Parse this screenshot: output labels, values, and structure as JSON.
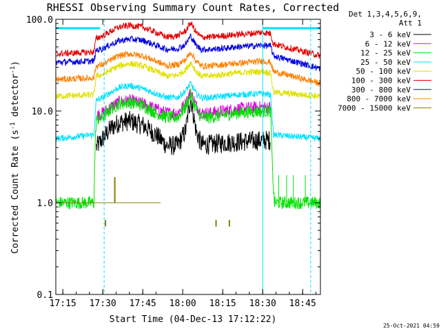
{
  "chart_data": {
    "type": "line",
    "title": "RHESSI Observing Summary Count Rates, Corrected",
    "xlabel": "Start Time (04-Dec-13 17:12:22)",
    "ylabel": "Corrected Count Rate (s⁻¹ detector⁻¹)",
    "ylabel_main": "Corrected Count Rate (s",
    "ylabel_sup1": "-1",
    "ylabel_mid": " detector",
    "ylabel_sup2": "-1",
    "ylabel_end": ")",
    "y_scale": "log",
    "ylim": [
      0.1,
      100.0
    ],
    "xlim": [
      "17:12:22",
      "18:51:40"
    ],
    "x_ticks": [
      {
        "value": "17:15",
        "label": "17:15"
      },
      {
        "value": "17:30",
        "label": "17:30"
      },
      {
        "value": "17:45",
        "label": "17:45"
      },
      {
        "value": "18:00",
        "label": "18:00"
      },
      {
        "value": "18:15",
        "label": "18:15"
      },
      {
        "value": "18:30",
        "label": "18:30"
      },
      {
        "value": "18:45",
        "label": "18:45"
      }
    ],
    "y_ticks": [
      {
        "value": 100.0,
        "label": "100.0"
      },
      {
        "value": 10.0,
        "label": "10.0"
      },
      {
        "value": 1.0,
        "label": "1.0"
      },
      {
        "value": 0.1,
        "label": "0.1"
      }
    ],
    "legend_header": [
      "Det 1,3,4,5,6,9,",
      "Att 1"
    ],
    "legend_position": "top-right",
    "grid": false,
    "series": [
      {
        "name": "3 - 6 keV",
        "color": "#000000",
        "points": [
          [
            "17:26:40",
            0
          ],
          [
            "17:27:30",
            4.0
          ],
          [
            "17:30",
            5.0
          ],
          [
            "17:33",
            6.5
          ],
          [
            "17:36",
            7.5
          ],
          [
            "17:40",
            7.8
          ],
          [
            "17:45",
            7.0
          ],
          [
            "17:50",
            5.5
          ],
          [
            "17:54",
            4.2
          ],
          [
            "17:58",
            4.2
          ],
          [
            "18:01",
            6.0
          ],
          [
            "18:03",
            14.0
          ],
          [
            "18:05",
            6.0
          ],
          [
            "18:07",
            4.3
          ],
          [
            "18:10",
            4.3
          ],
          [
            "18:15",
            4.5
          ],
          [
            "18:20",
            4.6
          ],
          [
            "18:25",
            4.7
          ],
          [
            "18:30",
            4.8
          ],
          [
            "18:33",
            4.8
          ],
          [
            "18:34",
            0
          ]
        ]
      },
      {
        "name": "6 - 12 keV",
        "color": "#e000e0",
        "points": [
          [
            "17:26:40",
            0
          ],
          [
            "17:27:30",
            9.0
          ],
          [
            "17:30",
            9.5
          ],
          [
            "17:33",
            11.0
          ],
          [
            "17:36",
            12.5
          ],
          [
            "17:40",
            13.0
          ],
          [
            "17:45",
            12.0
          ],
          [
            "17:50",
            10.5
          ],
          [
            "17:54",
            9.5
          ],
          [
            "17:58",
            9.5
          ],
          [
            "18:01",
            12.0
          ],
          [
            "18:03",
            16.0
          ],
          [
            "18:05",
            11.5
          ],
          [
            "18:07",
            9.5
          ],
          [
            "18:10",
            9.5
          ],
          [
            "18:15",
            10.0
          ],
          [
            "18:20",
            10.5
          ],
          [
            "18:25",
            10.8
          ],
          [
            "18:30",
            11.0
          ],
          [
            "18:33",
            11.0
          ],
          [
            "18:34",
            0
          ]
        ]
      },
      {
        "name": "12 - 25 keV",
        "color": "#00e000",
        "points": [
          [
            "17:12:22",
            1.0
          ],
          [
            "17:26:40",
            1.0
          ],
          [
            "17:27:00",
            3.0
          ],
          [
            "17:27:30",
            8.0
          ],
          [
            "17:30",
            8.5
          ],
          [
            "17:33",
            10.5
          ],
          [
            "17:36",
            12.0
          ],
          [
            "17:40",
            12.5
          ],
          [
            "17:45",
            11.5
          ],
          [
            "17:50",
            9.5
          ],
          [
            "17:54",
            8.5
          ],
          [
            "17:58",
            8.5
          ],
          [
            "18:01",
            11.0
          ],
          [
            "18:03",
            15.0
          ],
          [
            "18:05",
            10.5
          ],
          [
            "18:07",
            8.5
          ],
          [
            "18:10",
            8.5
          ],
          [
            "18:15",
            9.0
          ],
          [
            "18:20",
            9.5
          ],
          [
            "18:25",
            9.8
          ],
          [
            "18:30",
            10.0
          ],
          [
            "18:33",
            10.0
          ],
          [
            "18:33:30",
            3.0
          ],
          [
            "18:34:20",
            1.0
          ],
          [
            "18:51:40",
            1.0
          ]
        ]
      },
      {
        "name": "25 - 50 keV",
        "color": "#00e0ff",
        "points": [
          [
            "17:12:22",
            5.0
          ],
          [
            "17:26:40",
            5.5
          ],
          [
            "17:27:30",
            13.0
          ],
          [
            "17:30",
            14.0
          ],
          [
            "17:33",
            16.0
          ],
          [
            "17:36",
            18.0
          ],
          [
            "17:40",
            19.0
          ],
          [
            "17:45",
            17.5
          ],
          [
            "17:50",
            15.5
          ],
          [
            "17:54",
            14.0
          ],
          [
            "17:58",
            14.0
          ],
          [
            "18:01",
            16.5
          ],
          [
            "18:03",
            20.0
          ],
          [
            "18:05",
            15.5
          ],
          [
            "18:07",
            14.0
          ],
          [
            "18:10",
            14.0
          ],
          [
            "18:15",
            14.5
          ],
          [
            "18:20",
            15.0
          ],
          [
            "18:25",
            15.3
          ],
          [
            "18:30",
            15.5
          ],
          [
            "18:33",
            15.0
          ],
          [
            "18:34",
            5.5
          ],
          [
            "18:51:40",
            5.0
          ]
        ]
      },
      {
        "name": "50 - 100 keV",
        "color": "#e0e000",
        "points": [
          [
            "17:12:22",
            14.5
          ],
          [
            "17:26:40",
            15.0
          ],
          [
            "17:27:30",
            24.0
          ],
          [
            "17:30",
            25.0
          ],
          [
            "17:33",
            28.0
          ],
          [
            "17:36",
            31.0
          ],
          [
            "17:40",
            33.0
          ],
          [
            "17:45",
            31.0
          ],
          [
            "17:50",
            27.0
          ],
          [
            "17:54",
            24.0
          ],
          [
            "17:58",
            24.5
          ],
          [
            "18:01",
            28.0
          ],
          [
            "18:03",
            34.0
          ],
          [
            "18:05",
            27.0
          ],
          [
            "18:07",
            24.0
          ],
          [
            "18:10",
            24.0
          ],
          [
            "18:15",
            25.0
          ],
          [
            "18:20",
            26.0
          ],
          [
            "18:25",
            26.5
          ],
          [
            "18:30",
            27.0
          ],
          [
            "18:33",
            26.0
          ],
          [
            "18:34",
            16.0
          ],
          [
            "18:51:40",
            14.5
          ]
        ]
      },
      {
        "name": "100 - 300 keV",
        "color": "#e00000",
        "points": [
          [
            "17:12:22",
            42.0
          ],
          [
            "17:26:40",
            44.0
          ],
          [
            "17:27:30",
            62.0
          ],
          [
            "17:30",
            66.0
          ],
          [
            "17:33",
            74.0
          ],
          [
            "17:36",
            82.0
          ],
          [
            "17:40",
            86.0
          ],
          [
            "17:45",
            82.0
          ],
          [
            "17:50",
            72.0
          ],
          [
            "17:54",
            64.0
          ],
          [
            "17:58",
            66.0
          ],
          [
            "18:01",
            74.0
          ],
          [
            "18:03",
            92.0
          ],
          [
            "18:05",
            72.0
          ],
          [
            "18:07",
            64.0
          ],
          [
            "18:10",
            64.0
          ],
          [
            "18:15",
            66.0
          ],
          [
            "18:20",
            68.0
          ],
          [
            "18:25",
            70.0
          ],
          [
            "18:30",
            72.0
          ],
          [
            "18:33",
            70.0
          ],
          [
            "18:34",
            54.0
          ],
          [
            "18:51:40",
            40.0
          ]
        ]
      },
      {
        "name": "300 - 800 keV",
        "color": "#0000e0",
        "points": [
          [
            "17:12:22",
            34.0
          ],
          [
            "17:26:40",
            35.0
          ],
          [
            "17:27:30",
            46.0
          ],
          [
            "17:30",
            48.0
          ],
          [
            "17:33",
            53.0
          ],
          [
            "17:36",
            58.0
          ],
          [
            "17:40",
            61.0
          ],
          [
            "17:45",
            59.0
          ],
          [
            "17:50",
            52.0
          ],
          [
            "17:54",
            47.0
          ],
          [
            "17:58",
            48.0
          ],
          [
            "18:01",
            53.0
          ],
          [
            "18:03",
            66.0
          ],
          [
            "18:05",
            52.0
          ],
          [
            "18:07",
            47.0
          ],
          [
            "18:10",
            47.0
          ],
          [
            "18:15",
            48.0
          ],
          [
            "18:20",
            50.0
          ],
          [
            "18:25",
            51.0
          ],
          [
            "18:30",
            52.0
          ],
          [
            "18:33",
            51.0
          ],
          [
            "18:34",
            40.0
          ],
          [
            "18:51:40",
            29.0
          ]
        ]
      },
      {
        "name": "800 - 7000 keV",
        "color": "#ff8000",
        "points": [
          [
            "17:12:22",
            22.0
          ],
          [
            "17:26:40",
            23.0
          ],
          [
            "17:27:30",
            31.0
          ],
          [
            "17:30",
            32.0
          ],
          [
            "17:33",
            36.0
          ],
          [
            "17:36",
            40.0
          ],
          [
            "17:40",
            42.0
          ],
          [
            "17:45",
            40.0
          ],
          [
            "17:50",
            35.0
          ],
          [
            "17:54",
            31.0
          ],
          [
            "17:58",
            32.0
          ],
          [
            "18:01",
            36.0
          ],
          [
            "18:03",
            44.0
          ],
          [
            "18:05",
            35.0
          ],
          [
            "18:07",
            31.0
          ],
          [
            "18:10",
            31.0
          ],
          [
            "18:15",
            32.0
          ],
          [
            "18:20",
            33.0
          ],
          [
            "18:25",
            34.0
          ],
          [
            "18:30",
            35.0
          ],
          [
            "18:33",
            34.0
          ],
          [
            "18:34",
            27.0
          ],
          [
            "18:51:40",
            20.0
          ]
        ]
      },
      {
        "name": "7000 - 15000 keV",
        "color": "#808000",
        "points": [
          [
            "17:12:22",
            1.0
          ],
          [
            "17:51:40",
            1.0
          ]
        ],
        "spikes": [
          {
            "t": "17:31:00",
            "low": 0.55,
            "high": 0.65
          },
          {
            "t": "17:34:30",
            "low": 1.0,
            "high": 1.9
          },
          {
            "t": "18:12:30",
            "low": 0.55,
            "high": 0.65
          },
          {
            "t": "18:17:30",
            "low": 0.55,
            "high": 0.65
          }
        ]
      }
    ],
    "green_spikes_after_exit": [
      {
        "t": "18:36:00",
        "high": 2.0
      },
      {
        "t": "18:39:00",
        "high": 2.0
      },
      {
        "t": "18:41:30",
        "high": 2.0
      },
      {
        "t": "18:46:00",
        "high": 2.0
      }
    ],
    "attenuator_periods_top": [
      {
        "start": "17:12:22",
        "end": "17:29:00"
      },
      {
        "start": "18:30:00",
        "end": "18:51:40"
      }
    ],
    "vertical_markers": [
      {
        "t": "17:12:22",
        "style": "solid",
        "color": "#00e0ff"
      },
      {
        "t": "17:30:30",
        "style": "dashed",
        "color": "#00e0ff"
      },
      {
        "t": "18:30:00",
        "style": "solid",
        "color": "#00e0ff"
      },
      {
        "t": "18:48:00",
        "style": "dashed",
        "color": "#00e0ff"
      }
    ]
  },
  "footer": {
    "timestamp": "25-Oct-2021 04:59"
  }
}
